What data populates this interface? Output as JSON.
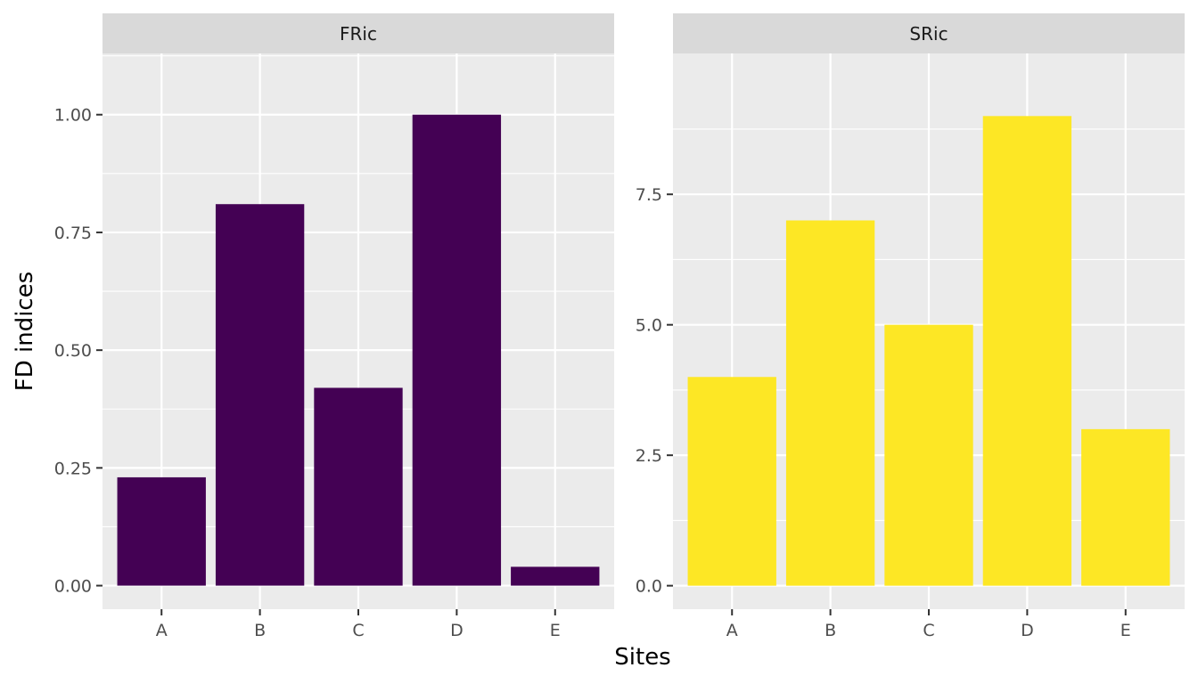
{
  "chart_data": {
    "type": "bar",
    "xlabel": "Sites",
    "ylabel": "FD indices",
    "grid": true,
    "facets": [
      {
        "name": "FRic",
        "categories": [
          "A",
          "B",
          "C",
          "D",
          "E"
        ],
        "values": [
          0.23,
          0.81,
          0.42,
          1.0,
          0.04
        ],
        "ylim": [
          -0.05,
          1.13
        ],
        "yticks": [
          0.0,
          0.25,
          0.5,
          0.75,
          1.0
        ],
        "ytick_labels": [
          "0.00",
          "0.25",
          "0.50",
          "0.75",
          "1.00"
        ],
        "color": "#440154"
      },
      {
        "name": "SRic",
        "categories": [
          "A",
          "B",
          "C",
          "D",
          "E"
        ],
        "values": [
          4,
          7,
          5,
          9,
          3
        ],
        "ylim": [
          -0.45,
          10.2
        ],
        "yticks": [
          0.0,
          2.5,
          5.0,
          7.5
        ],
        "ytick_labels": [
          "0.0",
          "2.5",
          "5.0",
          "7.5"
        ],
        "color": "#FDE725"
      }
    ]
  }
}
